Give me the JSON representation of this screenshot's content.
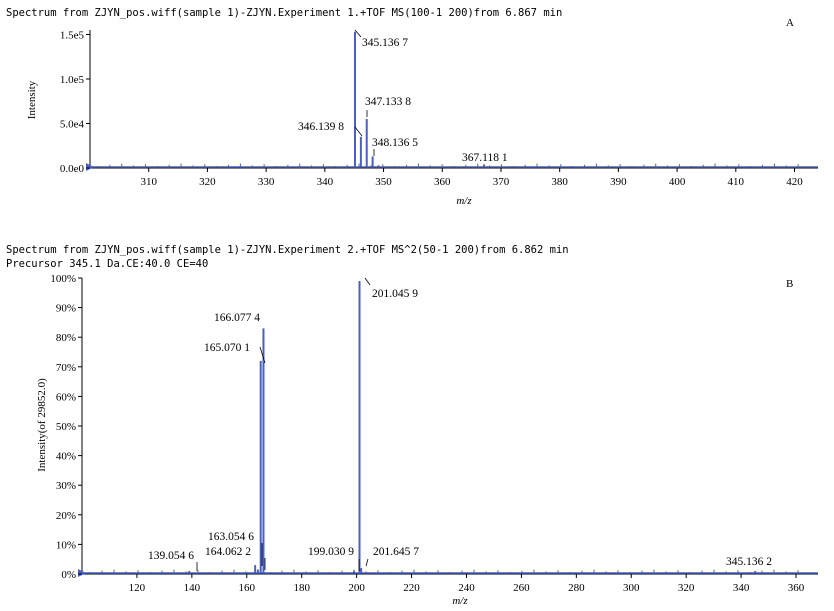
{
  "panel_a": {
    "header": "Spectrum from ZJYN_pos.wiff(sample 1)-ZJYN.Experiment 1.+TOF MS(100-1 200)from 6.867 min",
    "letter": "A"
  },
  "panel_b": {
    "header1": "Spectrum from ZJYN_pos.wiff(sample 1)-ZJYN.Experiment 2.+TOF MS^2(50-1 200)from 6.862 min",
    "header2": "Precursor 345.1 Da.CE:40.0 CE=40",
    "letter": "B"
  },
  "colors": {
    "series": "#4a5fc1",
    "leader": "#000000"
  },
  "chart_data": [
    {
      "type": "bar",
      "title": "Spectrum from ZJYN_pos.wiff(sample 1)-ZJYN.Experiment 1.+TOF MS(100-1 200)from 6.867 min",
      "xlabel": "m/z",
      "ylabel": "Intensity",
      "xlim": [
        300,
        424
      ],
      "ylim": [
        0,
        155000
      ],
      "xticks": [
        310,
        320,
        330,
        340,
        350,
        360,
        370,
        380,
        390,
        400,
        410,
        420
      ],
      "yticks": [
        {
          "v": 0,
          "label": "0.0e0"
        },
        {
          "v": 50000,
          "label": "5.0e4"
        },
        {
          "v": 100000,
          "label": "1.0e5"
        },
        {
          "v": 150000,
          "label": "1.5e5"
        }
      ],
      "peaks": [
        {
          "x": 345.1367,
          "y": 153000,
          "label": "345.136 7"
        },
        {
          "x": 346.1398,
          "y": 35000,
          "label": "346.139 8"
        },
        {
          "x": 347.1338,
          "y": 55000,
          "label": "347.133 8"
        },
        {
          "x": 348.1365,
          "y": 13000,
          "label": "348.136 5"
        },
        {
          "x": 367.1181,
          "y": 4000,
          "label": "367.118 1"
        },
        {
          "x": 349.13,
          "y": 3000,
          "label": ""
        },
        {
          "x": 368.12,
          "y": 1500,
          "label": ""
        }
      ]
    },
    {
      "type": "bar",
      "title": "Spectrum from ZJYN_pos.wiff(sample 1)-ZJYN.Experiment 2.+TOF MS^2(50-1 200)from 6.862 min",
      "subtitle": "Precursor 345.1 Da.CE:40.0 CE=40",
      "xlabel": "m/z",
      "ylabel": "Intensity(of 29852.0)",
      "xlim": [
        100,
        368
      ],
      "ylim": [
        0,
        100
      ],
      "xticks": [
        120,
        140,
        160,
        180,
        200,
        220,
        240,
        260,
        280,
        300,
        320,
        340,
        360
      ],
      "yticks": [
        {
          "v": 0,
          "label": "0%"
        },
        {
          "v": 10,
          "label": "10%"
        },
        {
          "v": 20,
          "label": "20%"
        },
        {
          "v": 30,
          "label": "30%"
        },
        {
          "v": 40,
          "label": "40%"
        },
        {
          "v": 50,
          "label": "50%"
        },
        {
          "v": 60,
          "label": "60%"
        },
        {
          "v": 70,
          "label": "70%"
        },
        {
          "v": 80,
          "label": "80%"
        },
        {
          "v": 90,
          "label": "90%"
        },
        {
          "v": 100,
          "label": "100%"
        }
      ],
      "peaks": [
        {
          "x": 139.0546,
          "y": 1,
          "label": "139.054 6"
        },
        {
          "x": 163.0546,
          "y": 3,
          "label": "163.054 6"
        },
        {
          "x": 164.0622,
          "y": 1.5,
          "label": "164.062 2"
        },
        {
          "x": 165.0701,
          "y": 72,
          "label": "165.070 1"
        },
        {
          "x": 166.0774,
          "y": 83,
          "label": "166.077 4"
        },
        {
          "x": 199.0309,
          "y": 1,
          "label": "199.030 9"
        },
        {
          "x": 201.0459,
          "y": 99,
          "label": "201.045 9"
        },
        {
          "x": 201.6457,
          "y": 2,
          "label": "201.645 7"
        },
        {
          "x": 345.1362,
          "y": 1,
          "label": "345.136 2"
        }
      ]
    }
  ]
}
